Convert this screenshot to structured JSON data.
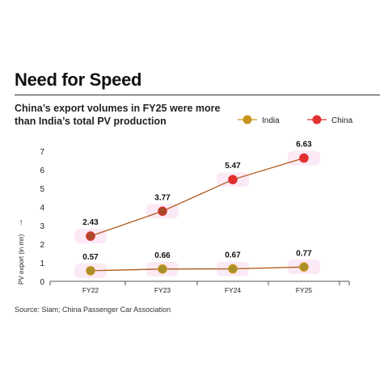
{
  "title": "Need for Speed",
  "subtitle": "China’s export volumes in FY25 were more than India’s total PV production",
  "source": "Source: Siam; China Passenger Car Association",
  "colors": {
    "india_marker": "#c9951c",
    "china_marker": "#e03030",
    "line": "#b25a1a",
    "highlight": "#f3c2e6"
  },
  "chart_data": {
    "type": "line",
    "categories": [
      "FY22",
      "FY23",
      "FY24",
      "FY25"
    ],
    "ylabel": "PV export (in mn)",
    "ylim": [
      0,
      7
    ],
    "yticks": [
      0,
      1,
      2,
      3,
      4,
      5,
      6,
      7
    ],
    "legend_position": "top-right",
    "series": [
      {
        "name": "India",
        "values": [
          0.57,
          0.66,
          0.67,
          0.77
        ],
        "labels": [
          "0.57",
          "0.66",
          "0.67",
          "0.77"
        ]
      },
      {
        "name": "China",
        "values": [
          2.43,
          3.77,
          5.47,
          6.63
        ],
        "labels": [
          "2.43",
          "3.77",
          "5.47",
          "6.63"
        ]
      }
    ]
  }
}
